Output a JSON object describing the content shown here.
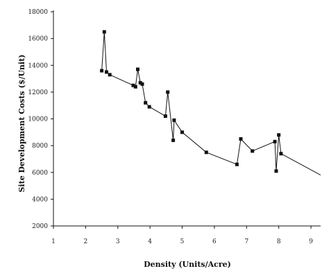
{
  "chart_data": {
    "type": "line",
    "title": "",
    "xlabel": "Density (Units/Acre)",
    "ylabel": "Site Development Costs ($/Unit)",
    "xlim": [
      1,
      9.3
    ],
    "ylim": [
      2000,
      18000
    ],
    "x_ticks": [
      "1",
      "2",
      "3",
      "4",
      "5",
      "6",
      "7",
      "8",
      "9"
    ],
    "y_ticks": [
      "2000",
      "4000",
      "6000",
      "8000",
      "10000",
      "12000",
      "14000",
      "16000",
      "18000"
    ],
    "grid": false,
    "legend": "none",
    "series": [
      {
        "marker": "square",
        "color": "#111111",
        "points": [
          {
            "x": 2.5,
            "y": 13600
          },
          {
            "x": 2.58,
            "y": 16500
          },
          {
            "x": 2.65,
            "y": 13500
          },
          {
            "x": 2.75,
            "y": 13300
          },
          {
            "x": 3.48,
            "y": 12500
          },
          {
            "x": 3.55,
            "y": 12400
          },
          {
            "x": 3.62,
            "y": 13700
          },
          {
            "x": 3.7,
            "y": 12700
          },
          {
            "x": 3.76,
            "y": 12600
          },
          {
            "x": 3.86,
            "y": 11200
          },
          {
            "x": 3.98,
            "y": 10900
          },
          {
            "x": 4.48,
            "y": 10200
          },
          {
            "x": 4.55,
            "y": 12000
          },
          {
            "x": 4.72,
            "y": 8400
          },
          {
            "x": 4.75,
            "y": 9900
          },
          {
            "x": 5.0,
            "y": 9000
          },
          {
            "x": 5.75,
            "y": 7500
          },
          {
            "x": 6.7,
            "y": 6600
          },
          {
            "x": 6.82,
            "y": 8500
          },
          {
            "x": 7.18,
            "y": 7600
          },
          {
            "x": 7.88,
            "y": 8300
          },
          {
            "x": 7.92,
            "y": 6100
          },
          {
            "x": 8.0,
            "y": 8800
          },
          {
            "x": 8.07,
            "y": 7400
          },
          {
            "x": 9.3,
            "y": 5800
          }
        ]
      }
    ]
  }
}
